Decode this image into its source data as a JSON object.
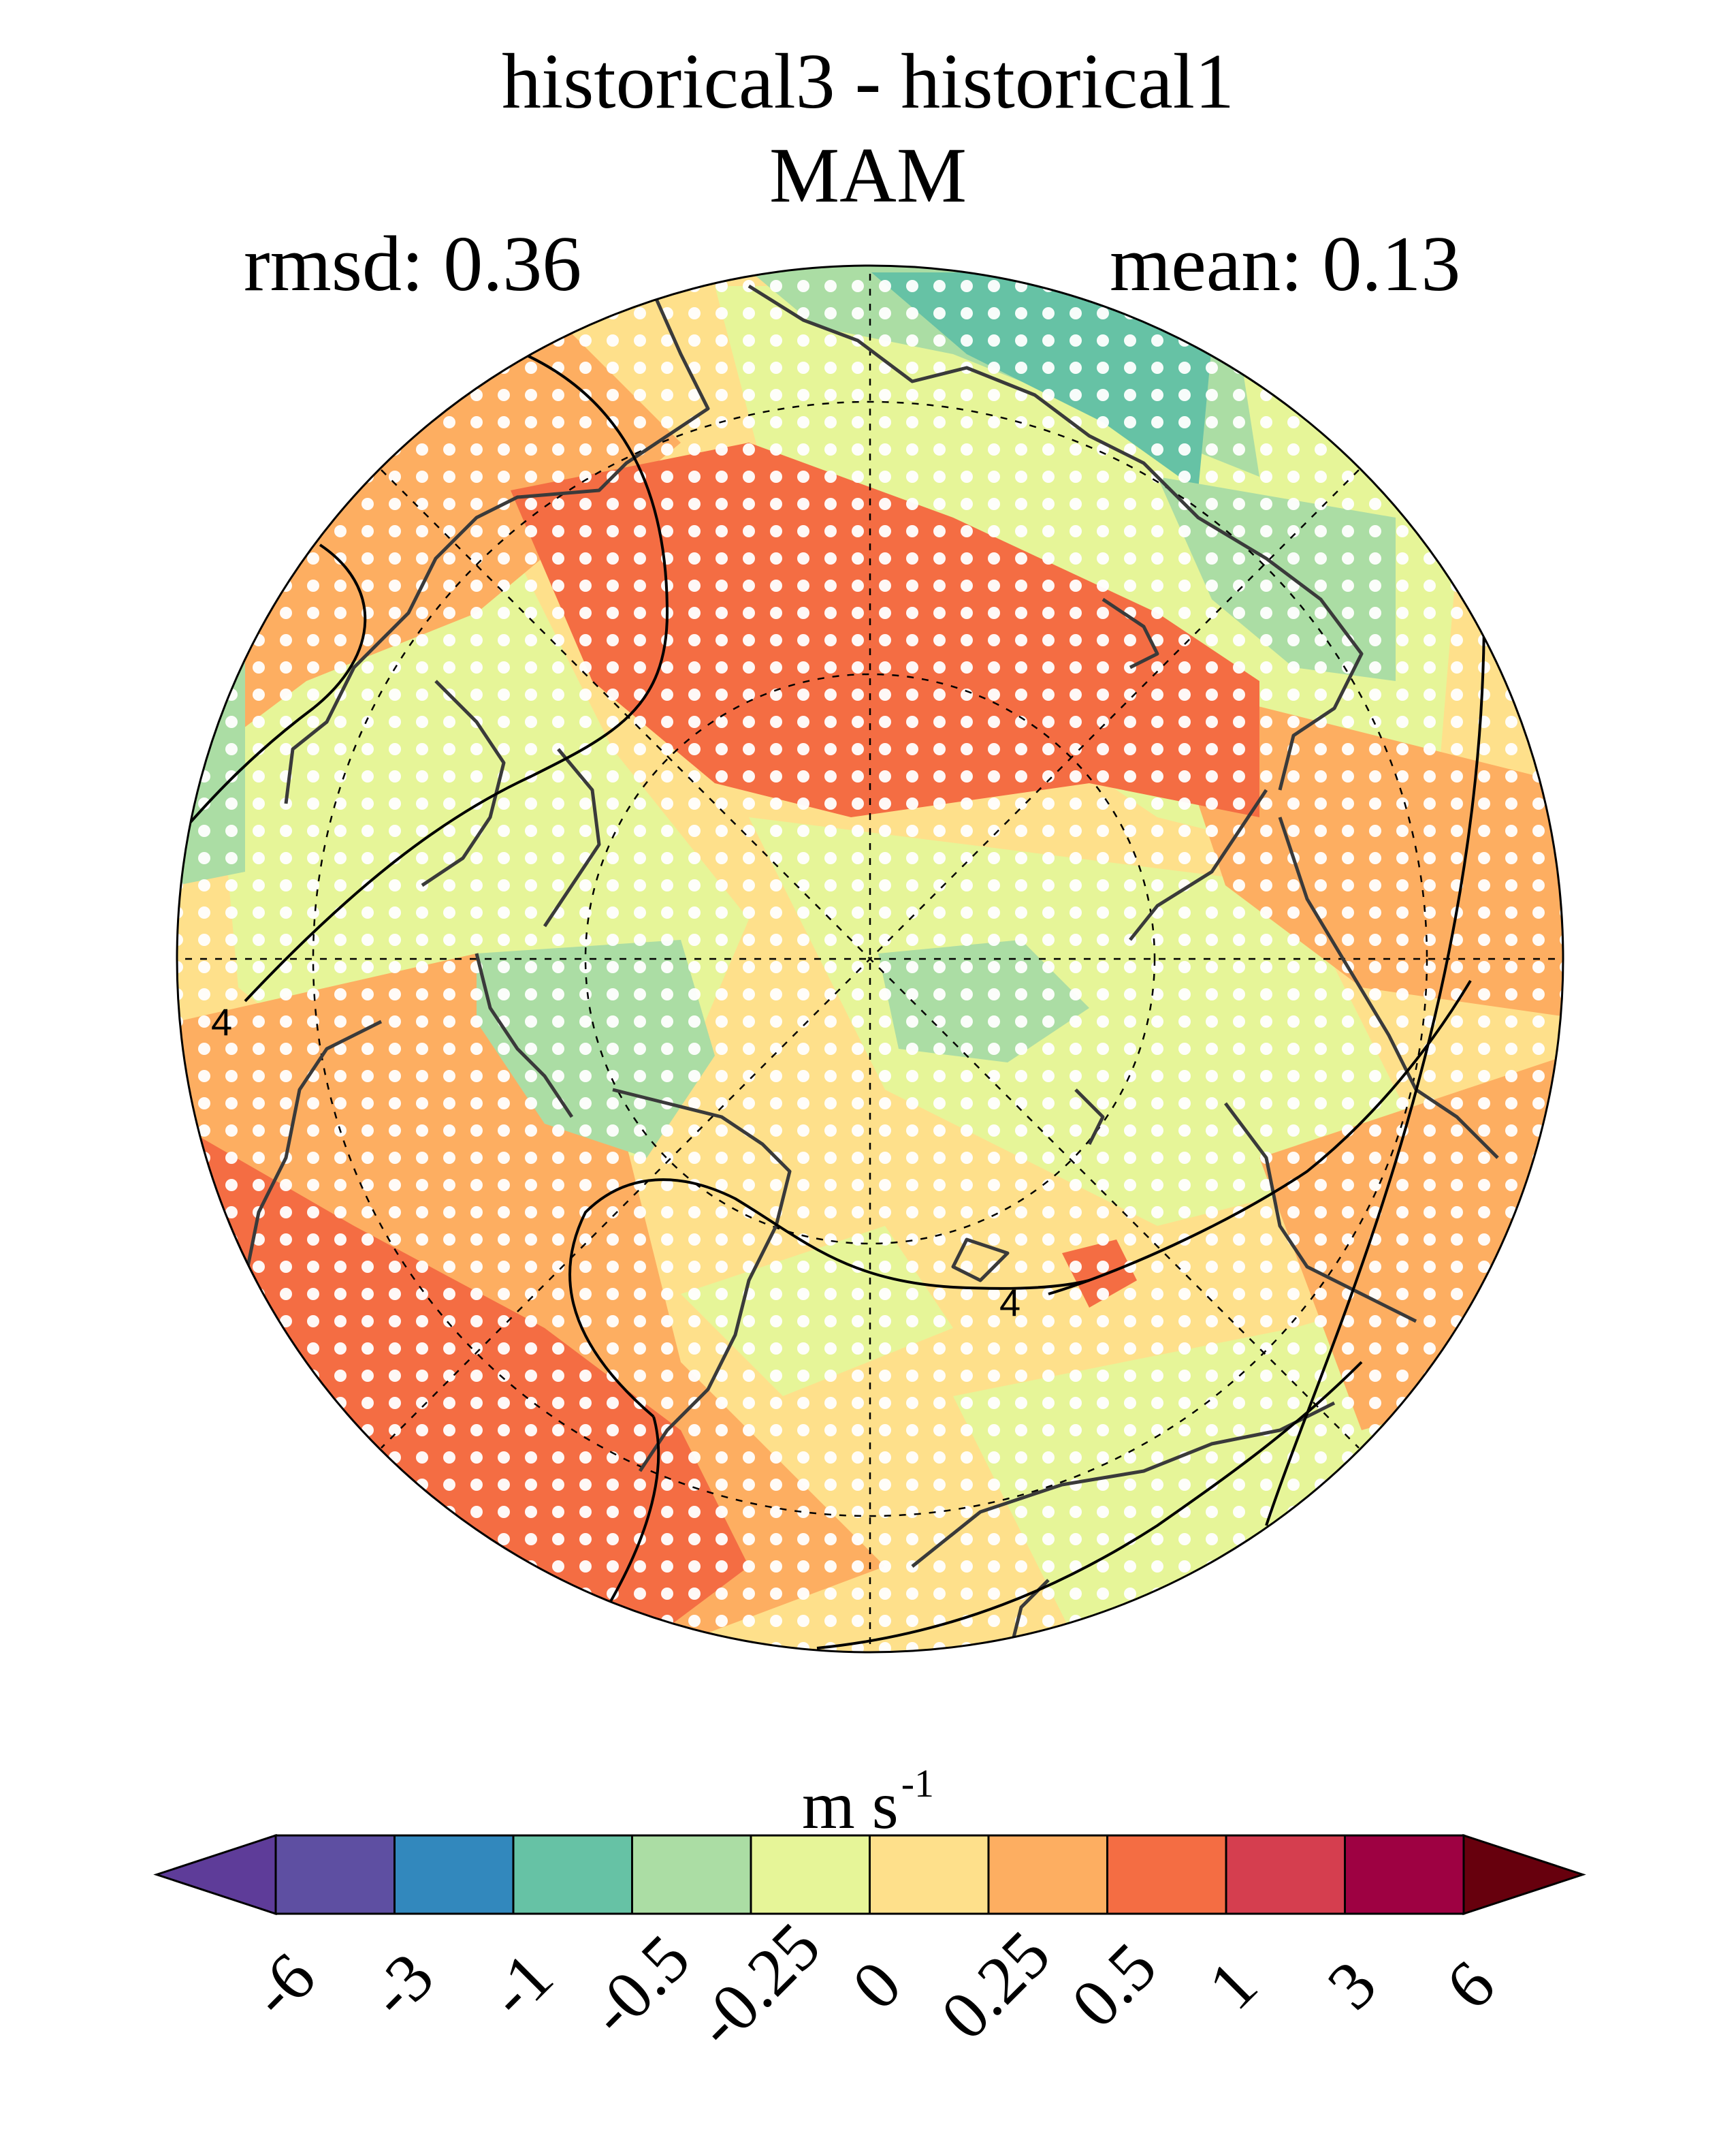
{
  "title": {
    "line1": "historical3 - historical1",
    "line2": "MAM"
  },
  "stats": {
    "rmsd_label": "rmsd: 0.36",
    "mean_label": "mean: 0.13"
  },
  "map": {
    "projection": "north polar stereographic",
    "contour_label": "4",
    "stippling": "white dots indicate significance",
    "coastline_color": "#3a3a3a"
  },
  "colorbar": {
    "unit_base": "m s",
    "unit_exp": "-1",
    "ticks": [
      "-6",
      "-3",
      "-1",
      "-0.5",
      "-0.25",
      "0",
      "0.25",
      "0.5",
      "1",
      "3",
      "6"
    ],
    "colors": [
      "#5e3c99",
      "#5e4fa2",
      "#3288bd",
      "#66c2a5",
      "#abdda4",
      "#e6f598",
      "#fee08b",
      "#fdae61",
      "#f46d43",
      "#d53e4f",
      "#9e0142",
      "#67000d"
    ],
    "extend": "both"
  }
}
